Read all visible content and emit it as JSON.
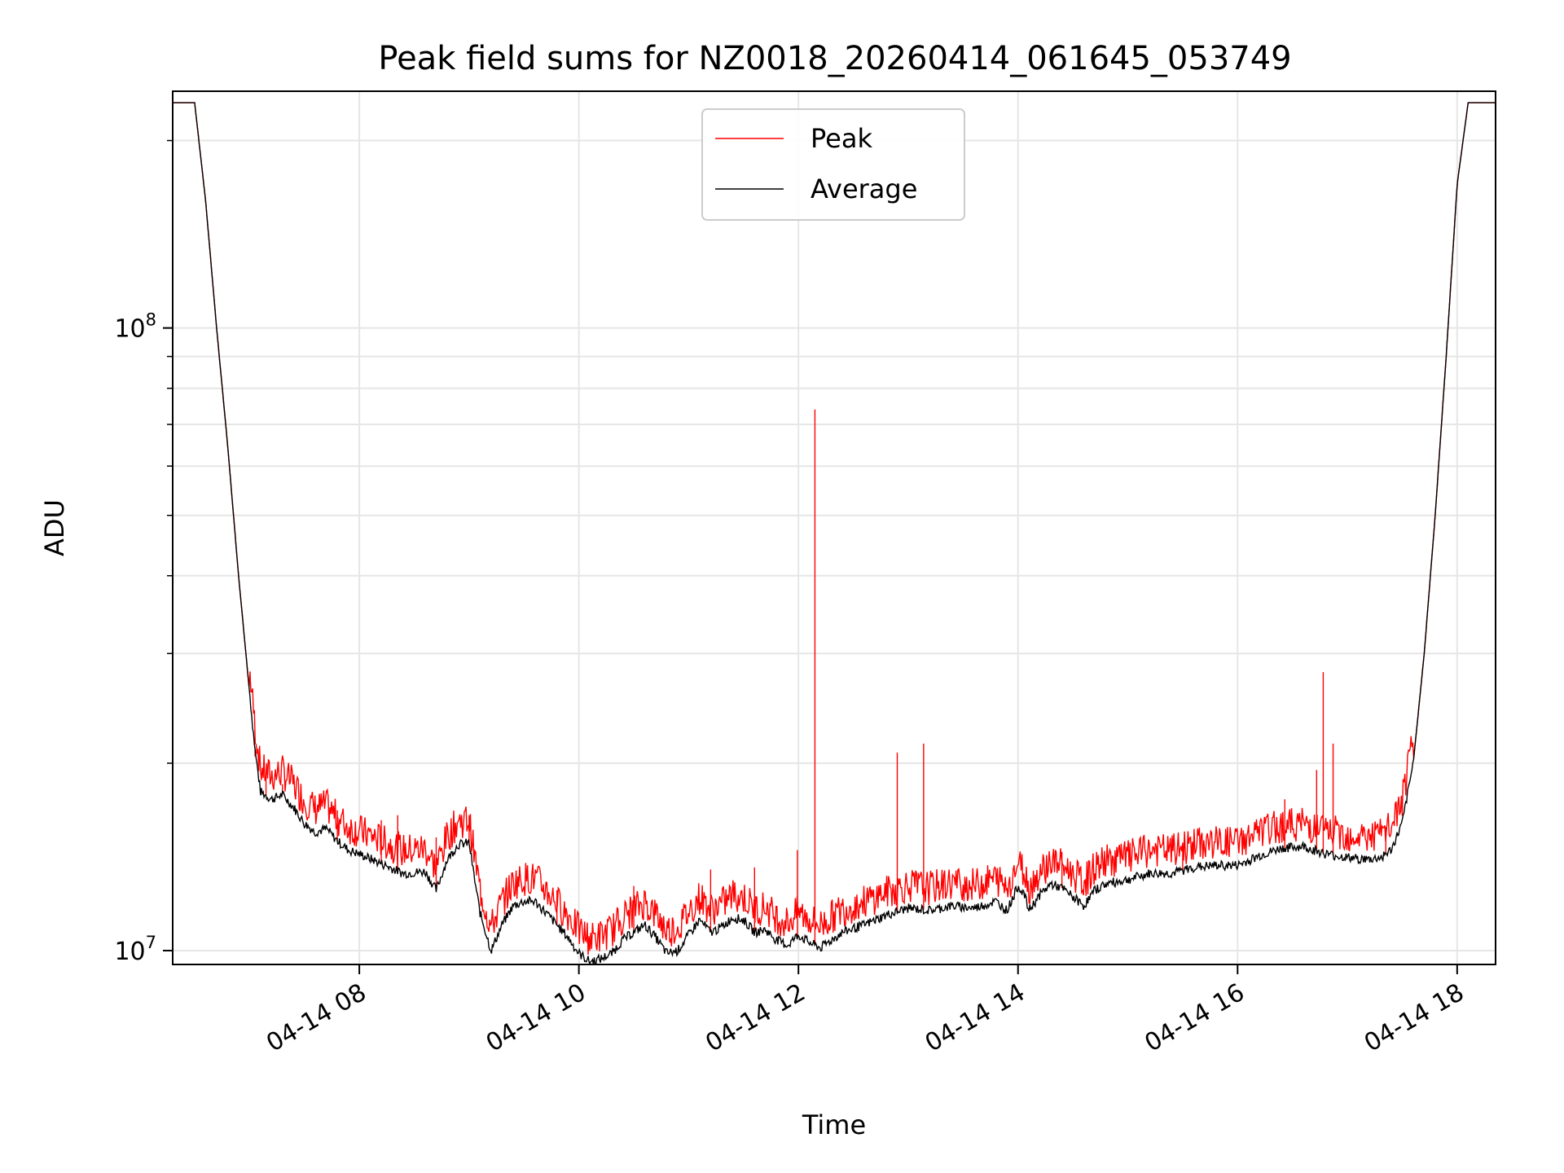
{
  "chart_data": {
    "type": "line",
    "title": "Peak field sums for NZ0018_20260414_061645_053749",
    "xlabel": "Time",
    "ylabel": "ADU",
    "yscale": "log",
    "xlim_hours": [
      6.3,
      18.35
    ],
    "ylim": [
      9500000,
      240000000
    ],
    "grid": true,
    "legend_position": "upper center",
    "x_ticks": [
      {
        "hour": 8,
        "label": "04-14 08"
      },
      {
        "hour": 10,
        "label": "04-14 10"
      },
      {
        "hour": 12,
        "label": "04-14 12"
      },
      {
        "hour": 14,
        "label": "04-14 14"
      },
      {
        "hour": 16,
        "label": "04-14 16"
      },
      {
        "hour": 18,
        "label": "04-14 18"
      }
    ],
    "y_ticks": [
      {
        "value": 10000000,
        "base": "10",
        "exp": "7"
      },
      {
        "value": 100000000,
        "base": "10",
        "exp": "8"
      }
    ],
    "series": [
      {
        "name": "Average",
        "color": "#000000",
        "hours": [
          6.3,
          6.5,
          6.6,
          6.7,
          6.8,
          6.9,
          7.0,
          7.05,
          7.1,
          7.2,
          7.3,
          7.4,
          7.5,
          7.6,
          7.7,
          7.8,
          7.9,
          8.0,
          8.2,
          8.4,
          8.6,
          8.7,
          8.8,
          8.9,
          9.0,
          9.05,
          9.1,
          9.2,
          9.3,
          9.4,
          9.5,
          9.6,
          9.7,
          9.8,
          9.9,
          10.0,
          10.1,
          10.2,
          10.3,
          10.4,
          10.5,
          10.6,
          10.7,
          10.8,
          10.9,
          11.0,
          11.1,
          11.2,
          11.3,
          11.4,
          11.5,
          11.6,
          11.7,
          11.8,
          11.9,
          12.0,
          12.1,
          12.2,
          12.3,
          12.4,
          12.6,
          12.8,
          13.0,
          13.2,
          13.4,
          13.6,
          13.8,
          13.9,
          14.0,
          14.05,
          14.1,
          14.2,
          14.3,
          14.4,
          14.5,
          14.6,
          14.7,
          14.8,
          15.0,
          15.2,
          15.4,
          15.6,
          15.8,
          16.0,
          16.2,
          16.4,
          16.6,
          16.8,
          17.0,
          17.2,
          17.3,
          17.4,
          17.5,
          17.6,
          17.7,
          17.8,
          17.9,
          18.0,
          18.1,
          18.35
        ],
        "values": [
          230000000,
          230000000,
          160000000,
          100000000,
          65000000,
          40000000,
          26000000,
          21000000,
          18000000,
          17500000,
          17800000,
          17000000,
          16000000,
          15500000,
          15700000,
          15000000,
          14500000,
          14300000,
          13800000,
          13300000,
          13400000,
          12500000,
          14000000,
          14800000,
          14900000,
          13000000,
          11500000,
          10000000,
          11000000,
          11800000,
          12000000,
          12000000,
          11500000,
          11000000,
          10500000,
          9900000,
          9600000,
          9700000,
          9900000,
          10400000,
          10700000,
          11000000,
          10500000,
          9900000,
          10000000,
          10600000,
          11200000,
          10700000,
          10900000,
          11300000,
          11200000,
          10700000,
          10800000,
          10400000,
          10200000,
          10600000,
          10300000,
          10100000,
          10400000,
          10700000,
          11000000,
          11400000,
          11700000,
          11600000,
          11800000,
          11700000,
          12000000,
          11600000,
          12700000,
          12400000,
          11600000,
          12300000,
          12800000,
          12600000,
          12200000,
          11800000,
          12500000,
          12800000,
          13000000,
          13300000,
          13300000,
          13600000,
          13700000,
          13700000,
          14200000,
          14600000,
          14700000,
          14300000,
          14100000,
          14000000,
          14100000,
          14500000,
          16000000,
          20000000,
          30000000,
          50000000,
          90000000,
          170000000,
          230000000,
          230000000
        ]
      },
      {
        "name": "Peak",
        "color": "#ff0000",
        "spikes": [
          {
            "hour": 7.05,
            "value": 20500000
          },
          {
            "hour": 7.15,
            "value": 19000000
          },
          {
            "hour": 7.3,
            "value": 18500000
          },
          {
            "hour": 7.8,
            "value": 16800000
          },
          {
            "hour": 8.2,
            "value": 16200000
          },
          {
            "hour": 8.35,
            "value": 16500000
          },
          {
            "hour": 8.7,
            "value": 15200000
          },
          {
            "hour": 9.0,
            "value": 16500000
          },
          {
            "hour": 9.8,
            "value": 12500000
          },
          {
            "hour": 10.5,
            "value": 12700000
          },
          {
            "hour": 11.2,
            "value": 13500000
          },
          {
            "hour": 11.6,
            "value": 13600000
          },
          {
            "hour": 11.99,
            "value": 14500000
          },
          {
            "hour": 12.15,
            "value": 74000000
          },
          {
            "hour": 12.9,
            "value": 20800000
          },
          {
            "hour": 13.14,
            "value": 21500000
          },
          {
            "hour": 14.4,
            "value": 14400000
          },
          {
            "hour": 15.5,
            "value": 14800000
          },
          {
            "hour": 16.43,
            "value": 17500000
          },
          {
            "hour": 16.72,
            "value": 19500000
          },
          {
            "hour": 16.78,
            "value": 28000000
          },
          {
            "hour": 16.87,
            "value": 21500000
          },
          {
            "hour": 17.35,
            "value": 15800000
          }
        ]
      }
    ]
  }
}
